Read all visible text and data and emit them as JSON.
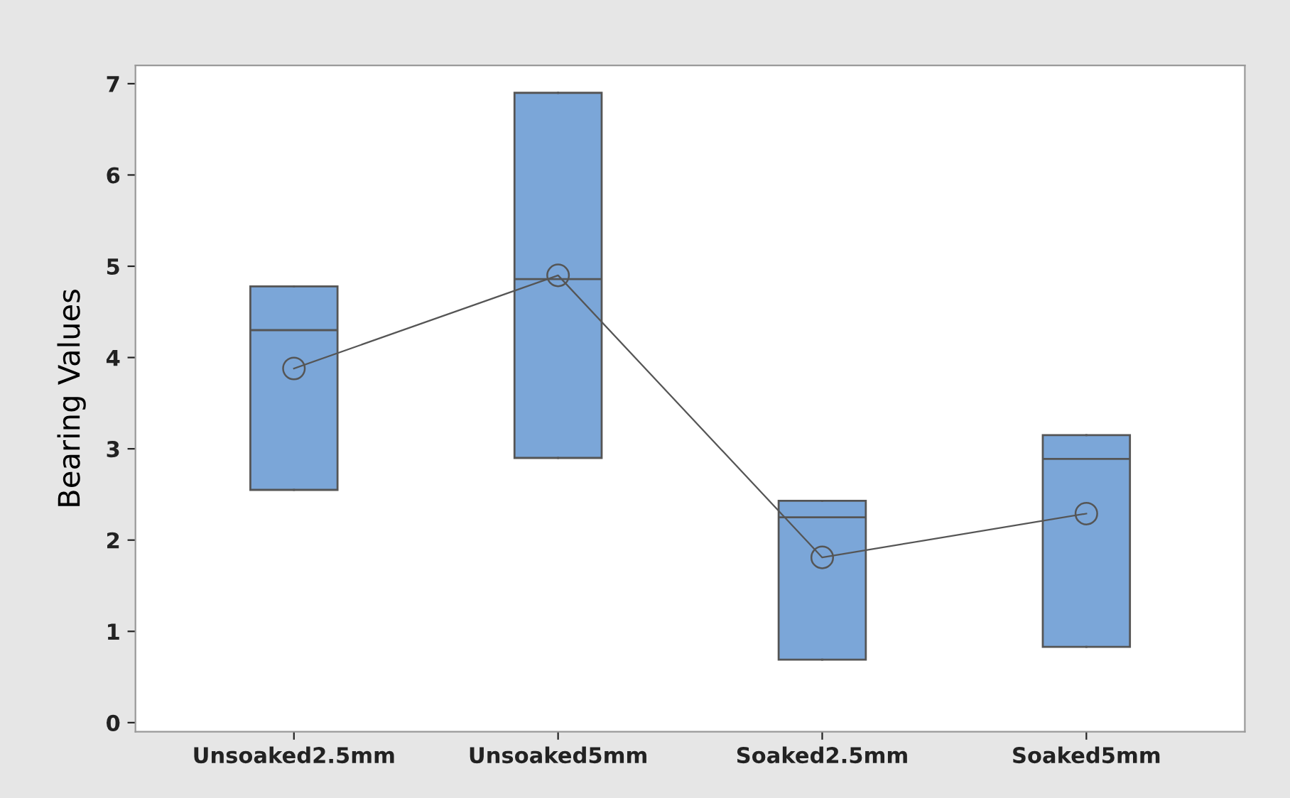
{
  "chart_data": {
    "type": "box",
    "ylabel": "Bearing Values",
    "categories": [
      "Unsoaked2.5mm",
      "Unsoaked5mm",
      "Soaked2.5mm",
      "Soaked5mm"
    ],
    "boxes": [
      {
        "low": 2.55,
        "q1": 2.55,
        "median": 4.3,
        "q3": 4.78,
        "high": 4.78
      },
      {
        "low": 2.9,
        "q1": 2.9,
        "median": 4.86,
        "q3": 6.9,
        "high": 6.9
      },
      {
        "low": 0.69,
        "q1": 0.69,
        "median": 2.25,
        "q3": 2.43,
        "high": 2.43
      },
      {
        "low": 0.83,
        "q1": 0.83,
        "median": 2.89,
        "q3": 3.15,
        "high": 3.15
      }
    ],
    "color": "#7ba6d8",
    "series": [
      {
        "type": "line",
        "color": "#555555",
        "marker": "circle",
        "x": [
          "Unsoaked2.5mm",
          "Unsoaked5mm",
          "Soaked2.5mm",
          "Soaked5mm"
        ],
        "values": [
          3.88,
          4.9,
          1.81,
          2.29
        ]
      }
    ],
    "ylim": [
      -0.1,
      7.2
    ],
    "yticks": [
      0,
      1,
      2,
      3,
      4,
      5,
      6,
      7
    ],
    "grid": false
  }
}
